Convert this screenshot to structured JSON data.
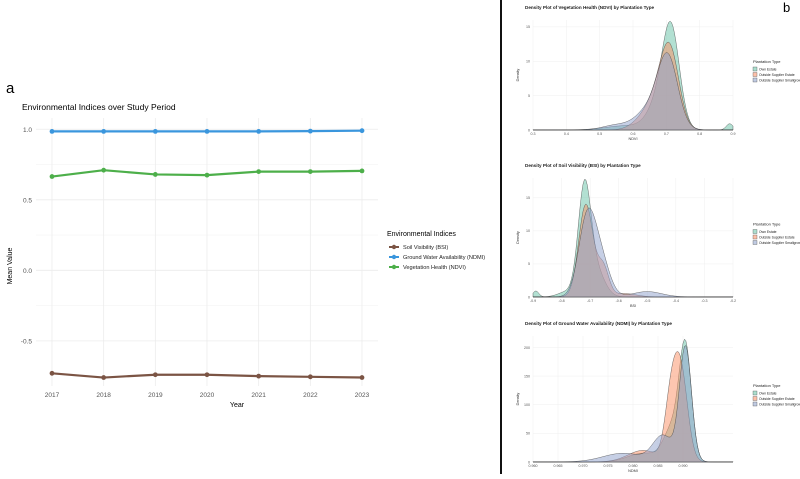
{
  "panel_labels": {
    "a": "a",
    "b": "b"
  },
  "chart_data": [
    {
      "type": "line",
      "title": "Environmental Indices over Study Period",
      "xlabel": "Year",
      "ylabel": "Mean Value",
      "x": [
        2017,
        2018,
        2019,
        2020,
        2021,
        2022,
        2023
      ],
      "xticks": [
        "2017",
        "2018",
        "2019",
        "2020",
        "2021",
        "2022",
        "2023"
      ],
      "ylim": [
        -0.82,
        1.08
      ],
      "yticks": [
        1.0,
        0.5,
        0.0,
        -0.5
      ],
      "ytick_labels": [
        "1.0",
        "0.5",
        "0.0",
        "-0.5"
      ],
      "grid": true,
      "legend_title": "Environmental Indices",
      "legend_position": "right",
      "series": [
        {
          "name": "Soil Visibility (BSI)",
          "color": "#7b5444",
          "values": [
            -0.73,
            -0.76,
            -0.74,
            -0.74,
            -0.75,
            -0.755,
            -0.76
          ]
        },
        {
          "name": "Ground Water Availability (NDMI)",
          "color": "#3a96dd",
          "values": [
            0.985,
            0.985,
            0.985,
            0.985,
            0.985,
            0.987,
            0.99
          ]
        },
        {
          "name": "Vegetation Health (NDVI)",
          "color": "#4daf4a",
          "values": [
            0.665,
            0.71,
            0.68,
            0.675,
            0.7,
            0.7,
            0.705
          ]
        }
      ]
    },
    {
      "type": "area",
      "title": "Density Plot of Vegetation Health (NDVI) by Plantation Type",
      "xlabel": "NDVI",
      "ylabel": "Density",
      "xlim": [
        0.3,
        0.9
      ],
      "xticks": [
        "0.3",
        "0.4",
        "0.5",
        "0.6",
        "0.7",
        "0.8",
        "0.9"
      ],
      "ylim": [
        0,
        16
      ],
      "yticks": [
        "0",
        "5",
        "10",
        "15"
      ],
      "legend_title": "Plantation Type",
      "legend_position": "right",
      "series": [
        {
          "name": "Own Estate",
          "color": "#66c2a5",
          "peaks": [
            [
              0.715,
              12.5,
              0.025
            ],
            [
              0.685,
              4.5,
              0.035
            ],
            [
              0.58,
              0.6,
              0.06
            ],
            [
              0.89,
              0.9,
              0.01
            ]
          ]
        },
        {
          "name": "Outside Supplier Estate",
          "color": "#fc8d62",
          "peaks": [
            [
              0.71,
              11.5,
              0.028
            ],
            [
              0.665,
              3.5,
              0.03
            ],
            [
              0.62,
              1.0,
              0.03
            ]
          ]
        },
        {
          "name": "Outside Supplier Smallgrower",
          "color": "#8da0cb",
          "peaks": [
            [
              0.705,
              10.0,
              0.03
            ],
            [
              0.65,
              3.0,
              0.04
            ],
            [
              0.55,
              0.7,
              0.04
            ]
          ]
        }
      ]
    },
    {
      "type": "area",
      "title": "Density Plot of Soil Visibility (BSI) by Plantation Type",
      "xlabel": "BSI",
      "ylabel": "Density",
      "xlim": [
        -0.9,
        -0.2
      ],
      "xticks": [
        "-0.9",
        "-0.8",
        "-0.7",
        "-0.6",
        "-0.5",
        "-0.4",
        "-0.3",
        "-0.2"
      ],
      "ylim": [
        0,
        18
      ],
      "yticks": [
        "0",
        "5",
        "10",
        "15"
      ],
      "legend_title": "Plantation Type",
      "legend_position": "right",
      "series": [
        {
          "name": "Own Estate",
          "color": "#66c2a5",
          "peaks": [
            [
              -0.72,
              16.0,
              0.022
            ],
            [
              -0.68,
              4.0,
              0.03
            ],
            [
              -0.89,
              0.9,
              0.01
            ],
            [
              -0.78,
              0.8,
              0.03
            ]
          ]
        },
        {
          "name": "Outside Supplier Estate",
          "color": "#fc8d62",
          "peaks": [
            [
              -0.715,
              14.0,
              0.025
            ],
            [
              -0.655,
              4.5,
              0.02
            ],
            [
              -0.58,
              0.5,
              0.04
            ]
          ]
        },
        {
          "name": "Outside Supplier Smallgrower",
          "color": "#8da0cb",
          "peaks": [
            [
              -0.71,
              12.0,
              0.03
            ],
            [
              -0.66,
              5.0,
              0.03
            ],
            [
              -0.5,
              0.8,
              0.05
            ]
          ]
        }
      ]
    },
    {
      "type": "area",
      "title": "Density Plot of Ground Water Availability (NDMI) by Plantation Type",
      "xlabel": "NDMI",
      "ylabel": "Density",
      "xlim": [
        0.96,
        1.0
      ],
      "xticks": [
        "0.960",
        "0.965",
        "0.970",
        "0.975",
        "0.980",
        "0.985",
        "0.990"
      ],
      "ylim": [
        0,
        220
      ],
      "yticks": [
        "0",
        "50",
        "100",
        "150",
        "200"
      ],
      "legend_title": "Plantation Type",
      "legend_position": "right",
      "series": [
        {
          "name": "Own Estate",
          "color": "#66c2a5",
          "peaks": [
            [
              0.9905,
              190,
              0.0012
            ],
            [
              0.988,
              60,
              0.0018
            ],
            [
              0.982,
              15,
              0.003
            ]
          ]
        },
        {
          "name": "Outside Supplier Estate",
          "color": "#fc8d62",
          "peaks": [
            [
              0.9895,
              160,
              0.0014
            ],
            [
              0.9875,
              90,
              0.0012
            ],
            [
              0.982,
              20,
              0.003
            ]
          ]
        },
        {
          "name": "Outside Supplier Smallgrower",
          "color": "#8da0cb",
          "peaks": [
            [
              0.9905,
              200,
              0.0012
            ],
            [
              0.986,
              45,
              0.002
            ],
            [
              0.978,
              15,
              0.004
            ]
          ]
        }
      ]
    }
  ]
}
